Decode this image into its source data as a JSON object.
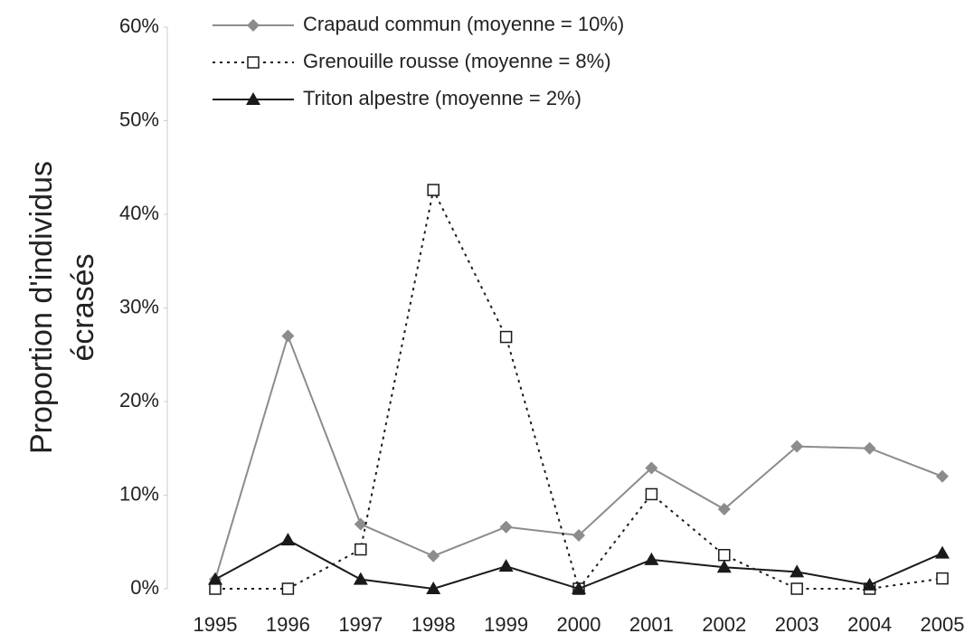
{
  "chart_data": {
    "type": "line",
    "ylabel": [
      "Proportion d'individus",
      "écrasés"
    ],
    "categories": [
      "1995",
      "1996",
      "1997",
      "1998",
      "1999",
      "2000",
      "2001",
      "2002",
      "2003",
      "2004",
      "2005"
    ],
    "series": [
      {
        "name": "Crapaud commun (moyenne = 10%)",
        "color": "#8c8c8c",
        "marker": "diamond",
        "dash": "solid",
        "values": [
          1,
          27,
          6.9,
          3.5,
          6.6,
          5.7,
          12.9,
          8.5,
          15.2,
          15,
          12
        ]
      },
      {
        "name": "Grenouille rousse (moyenne = 8%)",
        "color": "#1a1a1a",
        "marker": "square-open",
        "dash": "dotted",
        "values": [
          0,
          0,
          4.2,
          42.6,
          26.9,
          0,
          10.1,
          3.6,
          0,
          0,
          1.1
        ]
      },
      {
        "name": "Triton alpestre (moyenne = 2%)",
        "color": "#1a1a1a",
        "marker": "triangle",
        "dash": "solid",
        "values": [
          1,
          5.2,
          1,
          0,
          2.4,
          0,
          3.1,
          2.3,
          1.8,
          0.4,
          3.8
        ]
      }
    ],
    "ylim": [
      0,
      60
    ],
    "yticks": [
      {
        "value": 0,
        "label": "0%"
      },
      {
        "value": 10,
        "label": "10%"
      },
      {
        "value": 20,
        "label": "20%"
      },
      {
        "value": 30,
        "label": "30%"
      },
      {
        "value": 40,
        "label": "40%"
      },
      {
        "value": 50,
        "label": "50%"
      },
      {
        "value": 60,
        "label": "60%"
      }
    ],
    "grid": false,
    "legend": "top"
  }
}
